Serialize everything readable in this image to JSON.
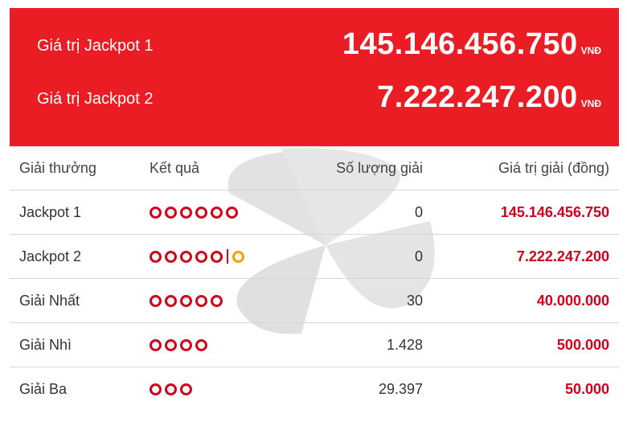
{
  "jackpots": [
    {
      "label": "Giá trị Jackpot 1",
      "amount": "145.146.456.750",
      "unit": "VNĐ"
    },
    {
      "label": "Giá trị Jackpot 2",
      "amount": "7.222.247.200",
      "unit": "VNĐ"
    }
  ],
  "table": {
    "headers": [
      "Giải thưởng",
      "Kết quả",
      "Số lượng giải",
      "Giá trị giải (đồng)"
    ],
    "rows": [
      {
        "name": "Jackpot 1",
        "balls": 6,
        "bonus": false,
        "count": "0",
        "value": "145.146.456.750"
      },
      {
        "name": "Jackpot 2",
        "balls": 5,
        "bonus": true,
        "count": "0",
        "value": "7.222.247.200"
      },
      {
        "name": "Giải Nhất",
        "balls": 5,
        "bonus": false,
        "count": "30",
        "value": "40.000.000"
      },
      {
        "name": "Giải Nhì",
        "balls": 4,
        "bonus": false,
        "count": "1.428",
        "value": "500.000"
      },
      {
        "name": "Giải Ba",
        "balls": 3,
        "bonus": false,
        "count": "29.397",
        "value": "50.000"
      }
    ]
  },
  "colors": {
    "header_bg": "#ea1c24",
    "ball": "#d0021b",
    "bonus_ball": "#f2a100"
  },
  "icons": {
    "watermark": "pinwheel-logo-watermark",
    "ball": "result-ball-icon"
  }
}
